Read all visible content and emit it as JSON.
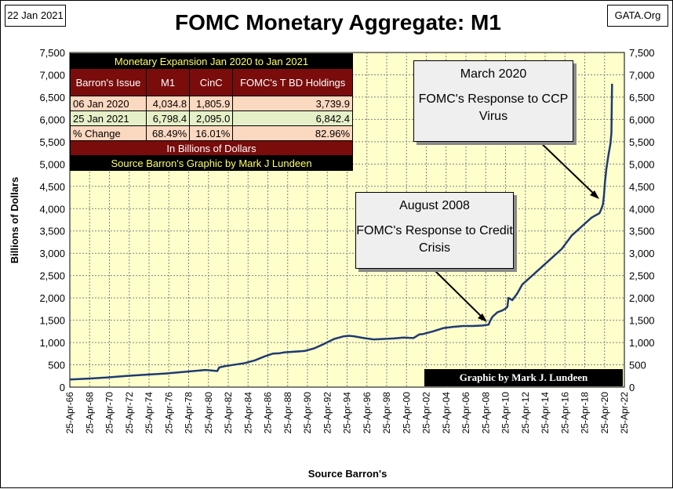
{
  "header": {
    "date": "22 Jan 2021",
    "site": "GATA.Org",
    "title": "FOMC Monetary Aggregate: M1"
  },
  "table": {
    "title": "Monetary Expansion Jan 2020 to Jan 2021",
    "headers": [
      "Barron's Issue",
      "M1",
      "CinC",
      "FOMC's T BD Holdings"
    ],
    "rows": [
      [
        "06 Jan 2020",
        "4,034.8",
        "1,805.9",
        "3,739.9"
      ],
      [
        "25 Jan 2021",
        "6,798.4",
        "2,095.0",
        "6,842.4"
      ],
      [
        "% Change",
        "68.49%",
        "16.01%",
        "82.96%"
      ]
    ],
    "footer": "In Billions of Dollars",
    "source": "Source Barron's Graphic by Mark J Lundeen"
  },
  "callouts": {
    "march2020": {
      "title": "March 2020",
      "text": "FOMC's Response to CCP Virus"
    },
    "aug2008": {
      "title": "August 2008",
      "text": "FOMC's Response to Credit Crisis"
    }
  },
  "credit": "Graphic by Mark J. Lundeen",
  "colors": {
    "plot_bg": "#ffffcc",
    "line": "#1f3b70",
    "table_header": "#7a0c0c",
    "table_title_text": "#ffff66"
  },
  "chart_data": {
    "type": "line",
    "title": "FOMC Monetary Aggregate: M1",
    "xlabel": "Source Barron's",
    "ylabel": "Billions of Dollars",
    "ylim": [
      0,
      7500
    ],
    "yticks": [
      "0",
      "500",
      "1,000",
      "1,500",
      "2,000",
      "2,500",
      "3,000",
      "3,500",
      "4,000",
      "4,500",
      "5,000",
      "5,500",
      "6,000",
      "6,500",
      "7,000",
      "7,500"
    ],
    "xlim": [
      1966.31,
      2022.31
    ],
    "xticks": [
      "25-Apr-66",
      "25-Apr-68",
      "25-Apr-70",
      "25-Apr-72",
      "25-Apr-74",
      "25-Apr-76",
      "25-Apr-78",
      "25-Apr-80",
      "25-Apr-82",
      "25-Apr-84",
      "25-Apr-86",
      "25-Apr-88",
      "25-Apr-90",
      "25-Apr-92",
      "25-Apr-94",
      "25-Apr-96",
      "25-Apr-98",
      "25-Apr-00",
      "25-Apr-02",
      "25-Apr-04",
      "25-Apr-06",
      "25-Apr-08",
      "25-Apr-10",
      "25-Apr-12",
      "25-Apr-14",
      "25-Apr-16",
      "25-Apr-18",
      "25-Apr-20",
      "25-Apr-22"
    ],
    "grid": true,
    "series": [
      {
        "x": [
          1966.3,
          1968,
          1970,
          1972,
          1974,
          1976,
          1978,
          1980,
          1980.5,
          1981.2,
          1981.4,
          1982,
          1984,
          1985,
          1986,
          1986.8,
          1987.5,
          1988,
          1990,
          1991,
          1992,
          1993,
          1994,
          1994.5,
          1995,
          1996,
          1997,
          1998,
          1999,
          2000,
          2001,
          2001.6,
          2002,
          2003,
          2004,
          2005,
          2006,
          2007,
          2008,
          2008.6,
          2008.75,
          2009,
          2009.5,
          2010,
          2010.3,
          2010.5,
          2010.6,
          2011,
          2011.5,
          2012,
          2013,
          2014,
          2015,
          2016,
          2017,
          2018,
          2019,
          2019.8,
          2020.0,
          2020.15,
          2020.25,
          2020.35,
          2020.5,
          2020.7,
          2020.9,
          2021.0,
          2021.07
        ],
        "values": [
          170,
          190,
          215,
          250,
          280,
          305,
          345,
          385,
          375,
          360,
          440,
          470,
          540,
          600,
          690,
          750,
          760,
          780,
          810,
          870,
          970,
          1080,
          1140,
          1150,
          1140,
          1100,
          1070,
          1080,
          1090,
          1110,
          1100,
          1180,
          1190,
          1250,
          1320,
          1350,
          1370,
          1370,
          1380,
          1400,
          1480,
          1580,
          1680,
          1720,
          1760,
          1800,
          2000,
          1950,
          2100,
          2300,
          2500,
          2700,
          2900,
          3100,
          3400,
          3600,
          3800,
          3900,
          4000,
          4100,
          4300,
          4600,
          4900,
          5200,
          5450,
          5700,
          6800
        ]
      }
    ],
    "annotations": [
      "March 2020 FOMC's Response to CCP Virus",
      "August 2008 FOMC's Response to Credit Crisis"
    ]
  }
}
